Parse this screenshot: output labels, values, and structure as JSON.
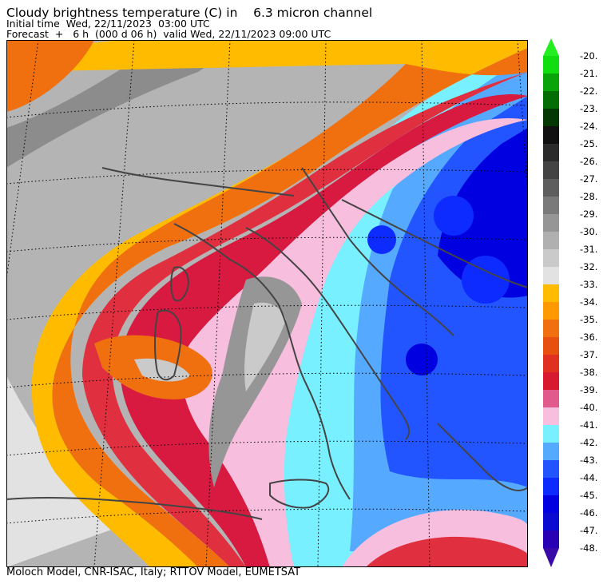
{
  "header": {
    "title": "Cloudy brightness temperature (C) in    6.3 micron channel",
    "initial_time": "Initial time  Wed, 22/11/2023  03:00 UTC",
    "forecast": "Forecast  +   6 h  (000 d 06 h)  valid Wed, 22/11/2023 09:00 UTC"
  },
  "footer": {
    "credits": "Moloch Model, CNR-ISAC, Italy; RTTOV Model, EUMETSAT"
  },
  "colorbar": {
    "upper_block": [
      {
        "label": "-20.",
        "color": "#11dd11"
      },
      {
        "label": "-21.",
        "color": "#0aa40a"
      },
      {
        "label": "-22.",
        "color": "#046e04"
      },
      {
        "label": "-23.",
        "color": "#033803"
      },
      {
        "label": "-24.",
        "color": "#111111"
      },
      {
        "label": "-25.",
        "color": "#2b2b2b"
      },
      {
        "label": "-26.",
        "color": "#444444"
      },
      {
        "label": "-27.",
        "color": "#5e5e5e"
      },
      {
        "label": "-28.",
        "color": "#7a7a7a"
      },
      {
        "label": "-29.",
        "color": "#969696"
      },
      {
        "label": "-30.",
        "color": "#b0b0b0"
      },
      {
        "label": "-31.",
        "color": "#cacaca"
      },
      {
        "label": "-32.",
        "color": "#e2e2e2"
      }
    ],
    "lower_block": [
      {
        "label": "-33.",
        "color": "#ffbb00"
      },
      {
        "label": "-34.",
        "color": "#ff9900"
      },
      {
        "label": "-35.",
        "color": "#f07010"
      },
      {
        "label": "-36.",
        "color": "#e85010"
      },
      {
        "label": "-37.",
        "color": "#e03020"
      },
      {
        "label": "-38.",
        "color": "#d81a30"
      },
      {
        "label": "-39.",
        "color": "#e05a8c"
      },
      {
        "label": "-40.",
        "color": "#f7bedd"
      },
      {
        "label": "-41.",
        "color": "#78f0ff"
      },
      {
        "label": "-42.",
        "color": "#55aaff"
      },
      {
        "label": "-43.",
        "color": "#2255ff"
      },
      {
        "label": "-44.",
        "color": "#0d2bff"
      },
      {
        "label": "-45.",
        "color": "#0000e0"
      },
      {
        "label": "-46.",
        "color": "#0a0ad0"
      },
      {
        "label": "-47.",
        "color": "#2a00b4"
      },
      {
        "label": "-48.",
        "color": ""
      }
    ],
    "top_arrow_color": "#22ee22",
    "bottom_arrow_color": "#3a0aa8"
  },
  "map": {
    "colors": {
      "red": "#e03040",
      "orange": "#f07010",
      "yellow": "#ffbb00",
      "pink": "#f7bedd",
      "magenta": "#d81a40",
      "cyan": "#78f0ff",
      "lightblue": "#55aaff",
      "blue": "#2255ff",
      "deepblue": "#0d2bff",
      "gray_dark": "#7a7a7a",
      "gray_mid": "#969696",
      "gray_light": "#cacaca",
      "gray_pale": "#e2e2e2",
      "coast": "#444444"
    }
  }
}
